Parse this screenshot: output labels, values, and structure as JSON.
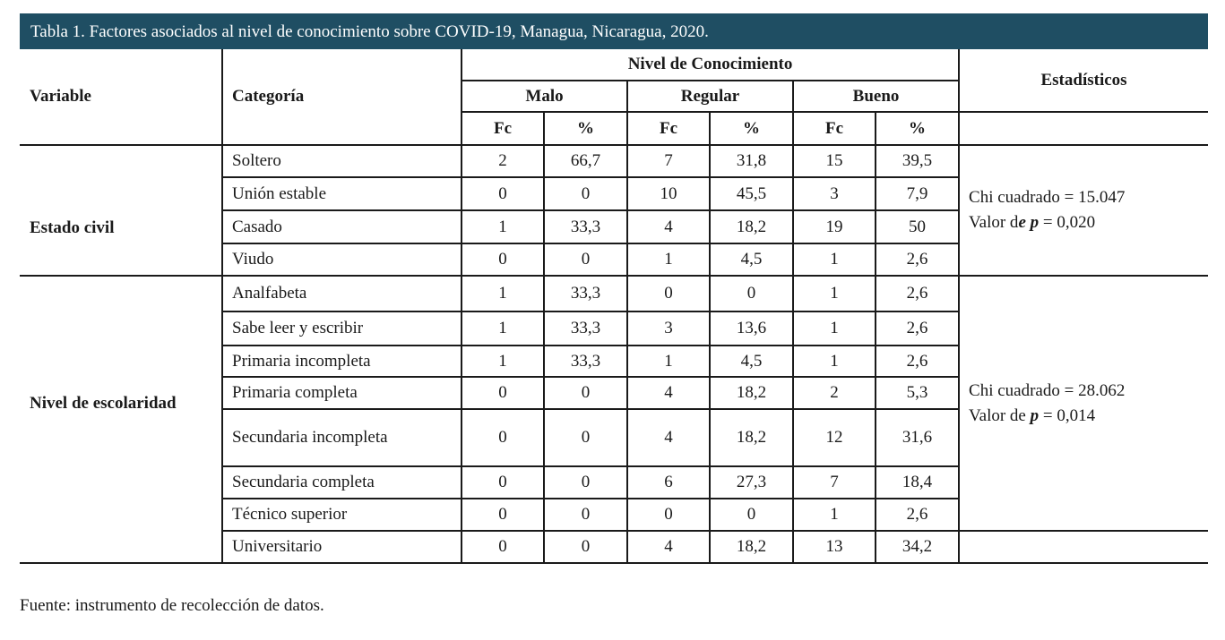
{
  "title": "Tabla 1. Factores asociados al nivel de conocimiento sobre COVID-19, Managua, Nicaragua, 2020.",
  "headers": {
    "variable": "Variable",
    "categoria": "Categoría",
    "nivel": "Nivel de Conocimiento",
    "estadisticos": "Estadísticos",
    "malo": "Malo",
    "regular": "Regular",
    "bueno": "Bueno",
    "fc": "Fc",
    "pct": "%"
  },
  "groups": [
    {
      "variable": "Estado civil",
      "stat_chi": "Chi cuadrado = 15.047",
      "stat_p_prefix": "Valor d",
      "stat_p_italic": "e p",
      "stat_p_value": " = 0,020",
      "rows": [
        {
          "cat": "Soltero",
          "vals": [
            "2",
            "66,7",
            "7",
            "31,8",
            "15",
            "39,5"
          ]
        },
        {
          "cat": "Unión estable",
          "vals": [
            "0",
            "0",
            "10",
            "45,5",
            "3",
            "7,9"
          ]
        },
        {
          "cat": "Casado",
          "vals": [
            "1",
            "33,3",
            "4",
            "18,2",
            "19",
            "50"
          ]
        },
        {
          "cat": "Viudo",
          "vals": [
            "0",
            "0",
            "1",
            "4,5",
            "1",
            "2,6"
          ]
        }
      ]
    },
    {
      "variable": "Nivel de escolaridad",
      "stat_chi": "Chi cuadrado = 28.062",
      "stat_p_prefix": "Valor de ",
      "stat_p_italic": "p",
      "stat_p_value": " = 0,014",
      "rows": [
        {
          "cat": "Analfabeta",
          "vals": [
            "1",
            "33,3",
            "0",
            "0",
            "1",
            "2,6"
          ]
        },
        {
          "cat": "Sabe leer y escribir",
          "vals": [
            "1",
            "33,3",
            "3",
            "13,6",
            "1",
            "2,6"
          ]
        },
        {
          "cat": "Primaria incompleta",
          "vals": [
            "1",
            "33,3",
            "1",
            "4,5",
            "1",
            "2,6"
          ]
        },
        {
          "cat": "Primaria completa",
          "vals": [
            "0",
            "0",
            "4",
            "18,2",
            "2",
            "5,3"
          ]
        },
        {
          "cat": "Secundaria incompleta",
          "vals": [
            "0",
            "0",
            "4",
            "18,2",
            "12",
            "31,6"
          ]
        },
        {
          "cat": "Secundaria completa",
          "vals": [
            "0",
            "0",
            "6",
            "27,3",
            "7",
            "18,4"
          ]
        },
        {
          "cat": "Técnico superior",
          "vals": [
            "0",
            "0",
            "0",
            "0",
            "1",
            "2,6"
          ]
        },
        {
          "cat": "Universitario",
          "vals": [
            "0",
            "0",
            "4",
            "18,2",
            "13",
            "34,2"
          ]
        }
      ]
    }
  ],
  "footnote": "Fuente: instrumento de recolección de datos."
}
